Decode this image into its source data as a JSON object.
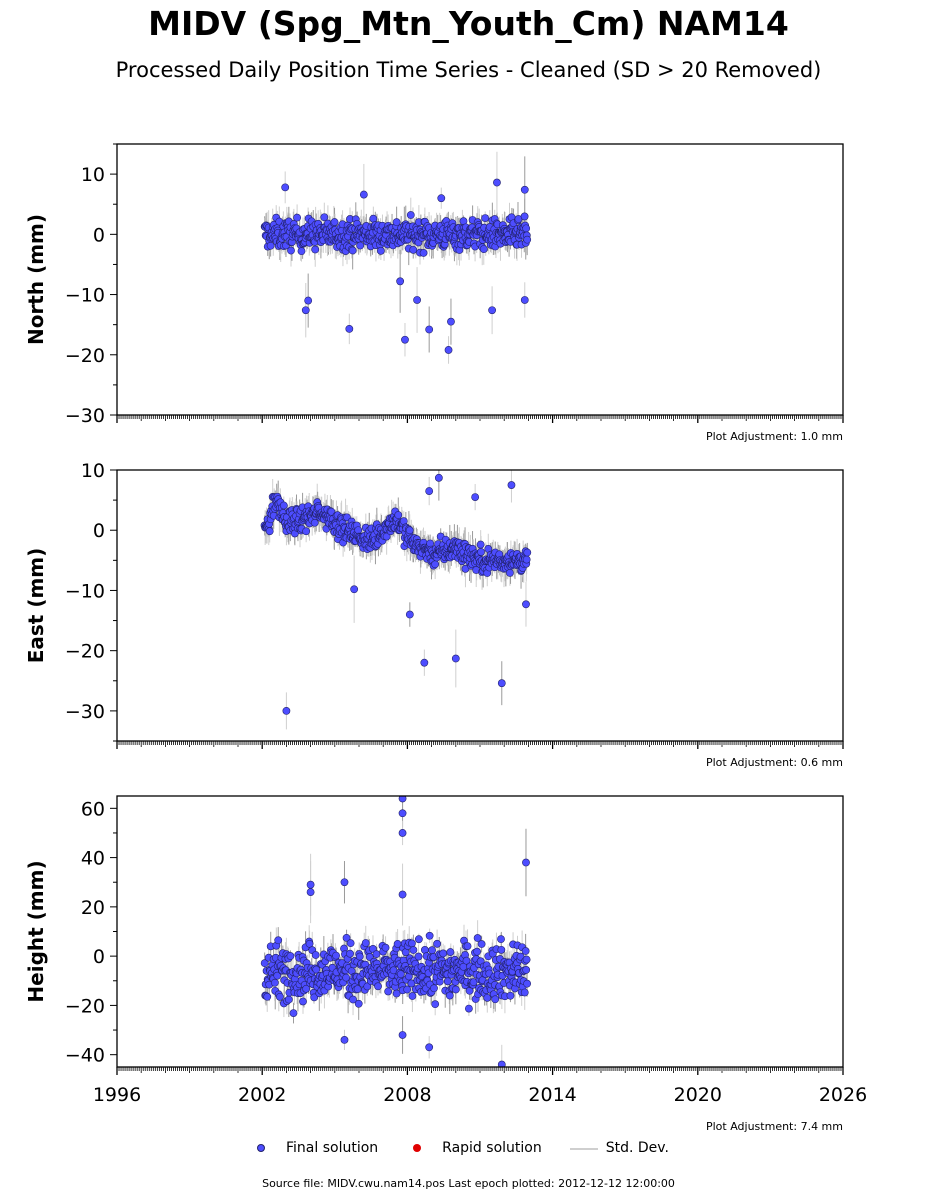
{
  "title": "MIDV (Spg_Mtn_Youth_Cm) NAM14",
  "subtitle": "Processed Daily Position Time Series - Cleaned (SD > 20 Removed)",
  "legend": {
    "final": "Final solution",
    "rapid": "Rapid solution",
    "stddev": "Std. Dev."
  },
  "footer": "Source file: MIDV.cwu.nam14.pos  Last epoch plotted: 2012-12-12 12:00:00",
  "colors": {
    "final": "#4d4dff",
    "final_edge": "#22226b",
    "rapid": "#e00000",
    "stddev": "#cfcfcf"
  },
  "chart_data": [
    {
      "type": "scatter",
      "ylabel": "North (mm)",
      "adjustment": "Plot Adjustment: 1.0 mm",
      "xlim": [
        1996,
        2026
      ],
      "ylim": [
        -30,
        15
      ],
      "yticks": [
        10,
        0,
        -10,
        -20,
        -30
      ],
      "yticklabels": [
        "10",
        "0",
        "−10",
        "−20",
        "−30"
      ],
      "data_range": [
        2002.1,
        2012.95
      ],
      "typical_range": [
        -3,
        3
      ],
      "outliers": [
        [
          2002.95,
          7.8
        ],
        [
          2003.8,
          -12.6
        ],
        [
          2003.9,
          -11
        ],
        [
          2005.6,
          -15.7
        ],
        [
          2006.2,
          6.6
        ],
        [
          2007.7,
          -7.8
        ],
        [
          2007.9,
          -17.5
        ],
        [
          2008.4,
          -10.9
        ],
        [
          2008.9,
          -15.8
        ],
        [
          2009.4,
          6
        ],
        [
          2009.7,
          -19.2
        ],
        [
          2009.8,
          -14.5
        ],
        [
          2011.5,
          -12.6
        ],
        [
          2011.7,
          8.6
        ],
        [
          2012.85,
          7.4
        ],
        [
          2012.85,
          -10.9
        ]
      ],
      "series": [
        {
          "name": "Final solution"
        }
      ]
    },
    {
      "type": "scatter",
      "ylabel": "East (mm)",
      "adjustment": "Plot Adjustment: 0.6 mm",
      "xlim": [
        1996,
        2026
      ],
      "ylim": [
        -35,
        10
      ],
      "yticks": [
        10,
        0,
        -10,
        -20,
        -30
      ],
      "yticklabels": [
        "10",
        "0",
        "−10",
        "−20",
        "−30"
      ],
      "data_range": [
        2002.1,
        2012.95
      ],
      "trend": [
        [
          2002.1,
          0
        ],
        [
          2002.6,
          5
        ],
        [
          2003.0,
          1
        ],
        [
          2004.5,
          3
        ],
        [
          2005.5,
          0
        ],
        [
          2006.5,
          -2
        ],
        [
          2007.5,
          2
        ],
        [
          2008.2,
          -2
        ],
        [
          2009.0,
          -4
        ],
        [
          2010.0,
          -3
        ],
        [
          2011.0,
          -5
        ],
        [
          2012.9,
          -5
        ]
      ],
      "typical_spread": 2.5,
      "outliers": [
        [
          2003.0,
          -30
        ],
        [
          2005.8,
          -9.8
        ],
        [
          2008.1,
          -14
        ],
        [
          2008.7,
          -22
        ],
        [
          2008.9,
          6.5
        ],
        [
          2009.3,
          8.7
        ],
        [
          2010.0,
          -21.3
        ],
        [
          2010.8,
          5.5
        ],
        [
          2011.9,
          -25.4
        ],
        [
          2012.3,
          7.5
        ],
        [
          2012.9,
          -12.3
        ]
      ],
      "series": [
        {
          "name": "Final solution"
        }
      ]
    },
    {
      "type": "scatter",
      "ylabel": "Height (mm)",
      "adjustment": "Plot Adjustment: 7.4 mm",
      "xlim": [
        1996,
        2026
      ],
      "ylim": [
        -45,
        65
      ],
      "yticks": [
        60,
        40,
        20,
        0,
        -20,
        -40
      ],
      "yticklabels": [
        "60",
        "40",
        "20",
        "0",
        "−20",
        "−40"
      ],
      "xticks": [
        1996,
        2002,
        2008,
        2014,
        2020,
        2026
      ],
      "xticklabels": [
        "1996",
        "2002",
        "2008",
        "2014",
        "2020",
        "2026"
      ],
      "data_range": [
        2002.1,
        2012.95
      ],
      "typical_range": [
        -20,
        8
      ],
      "outliers": [
        [
          2004.0,
          29
        ],
        [
          2004.0,
          26
        ],
        [
          2005.4,
          30
        ],
        [
          2005.4,
          -34
        ],
        [
          2007.8,
          64
        ],
        [
          2007.8,
          58
        ],
        [
          2007.8,
          50
        ],
        [
          2007.8,
          25
        ],
        [
          2007.8,
          -32
        ],
        [
          2008.9,
          -37
        ],
        [
          2011.9,
          -44
        ],
        [
          2012.9,
          38
        ]
      ],
      "series": [
        {
          "name": "Final solution"
        }
      ]
    }
  ]
}
